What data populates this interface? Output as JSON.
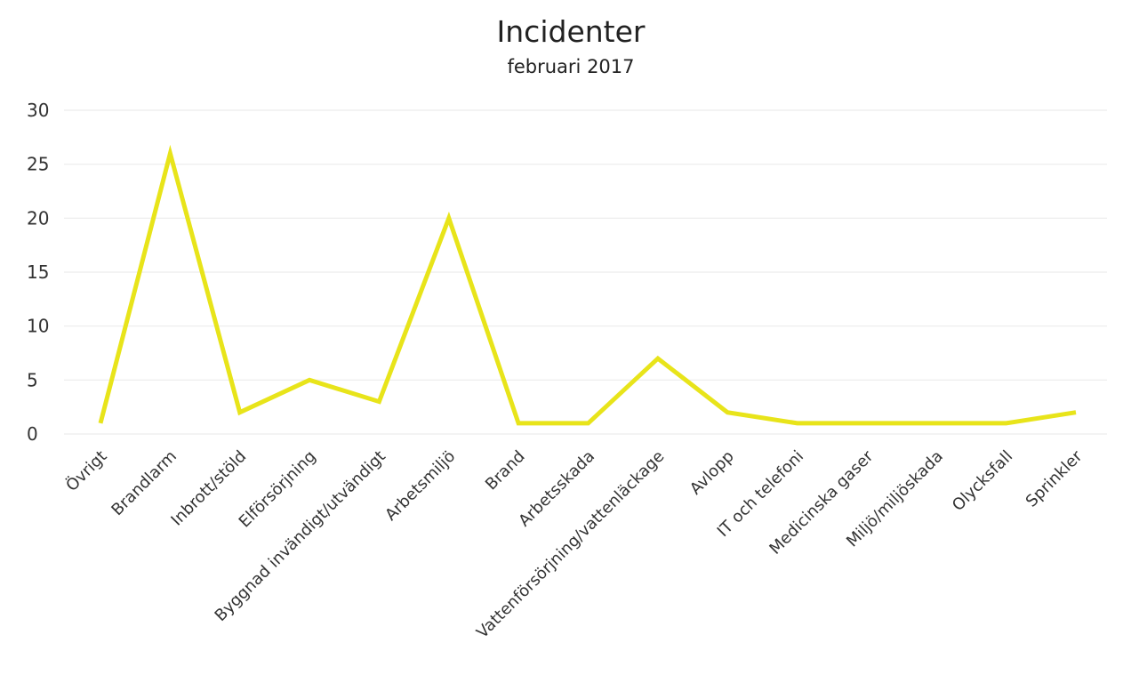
{
  "colors": {
    "line": "#e8e41a",
    "grid": "#ececec",
    "text": "#333333",
    "background": "#ffffff"
  },
  "chart_data": {
    "type": "line",
    "title": "Incidenter",
    "subtitle": "februari 2017",
    "xlabel": "",
    "ylabel": "",
    "ylim": [
      0,
      30
    ],
    "yticks": [
      0,
      5,
      10,
      15,
      20,
      25,
      30
    ],
    "grid": true,
    "legend": "none",
    "categories": [
      "Övrigt",
      "Brandlarm",
      "Inbrott/stöld",
      "Elförsörjning",
      "Byggnad invändigt/utvändigt",
      "Arbetsmiljö",
      "Brand",
      "Arbetsskada",
      "Vattenförsörjning/vattenläckage",
      "Avlopp",
      "IT och telefoni",
      "Medicinska gaser",
      "Miljö/miljöskada",
      "Olycksfall",
      "Sprinkler"
    ],
    "series": [
      {
        "values": [
          1,
          26,
          2,
          5,
          3,
          20,
          1,
          1,
          7,
          2,
          1,
          1,
          1,
          1,
          2
        ]
      }
    ]
  }
}
